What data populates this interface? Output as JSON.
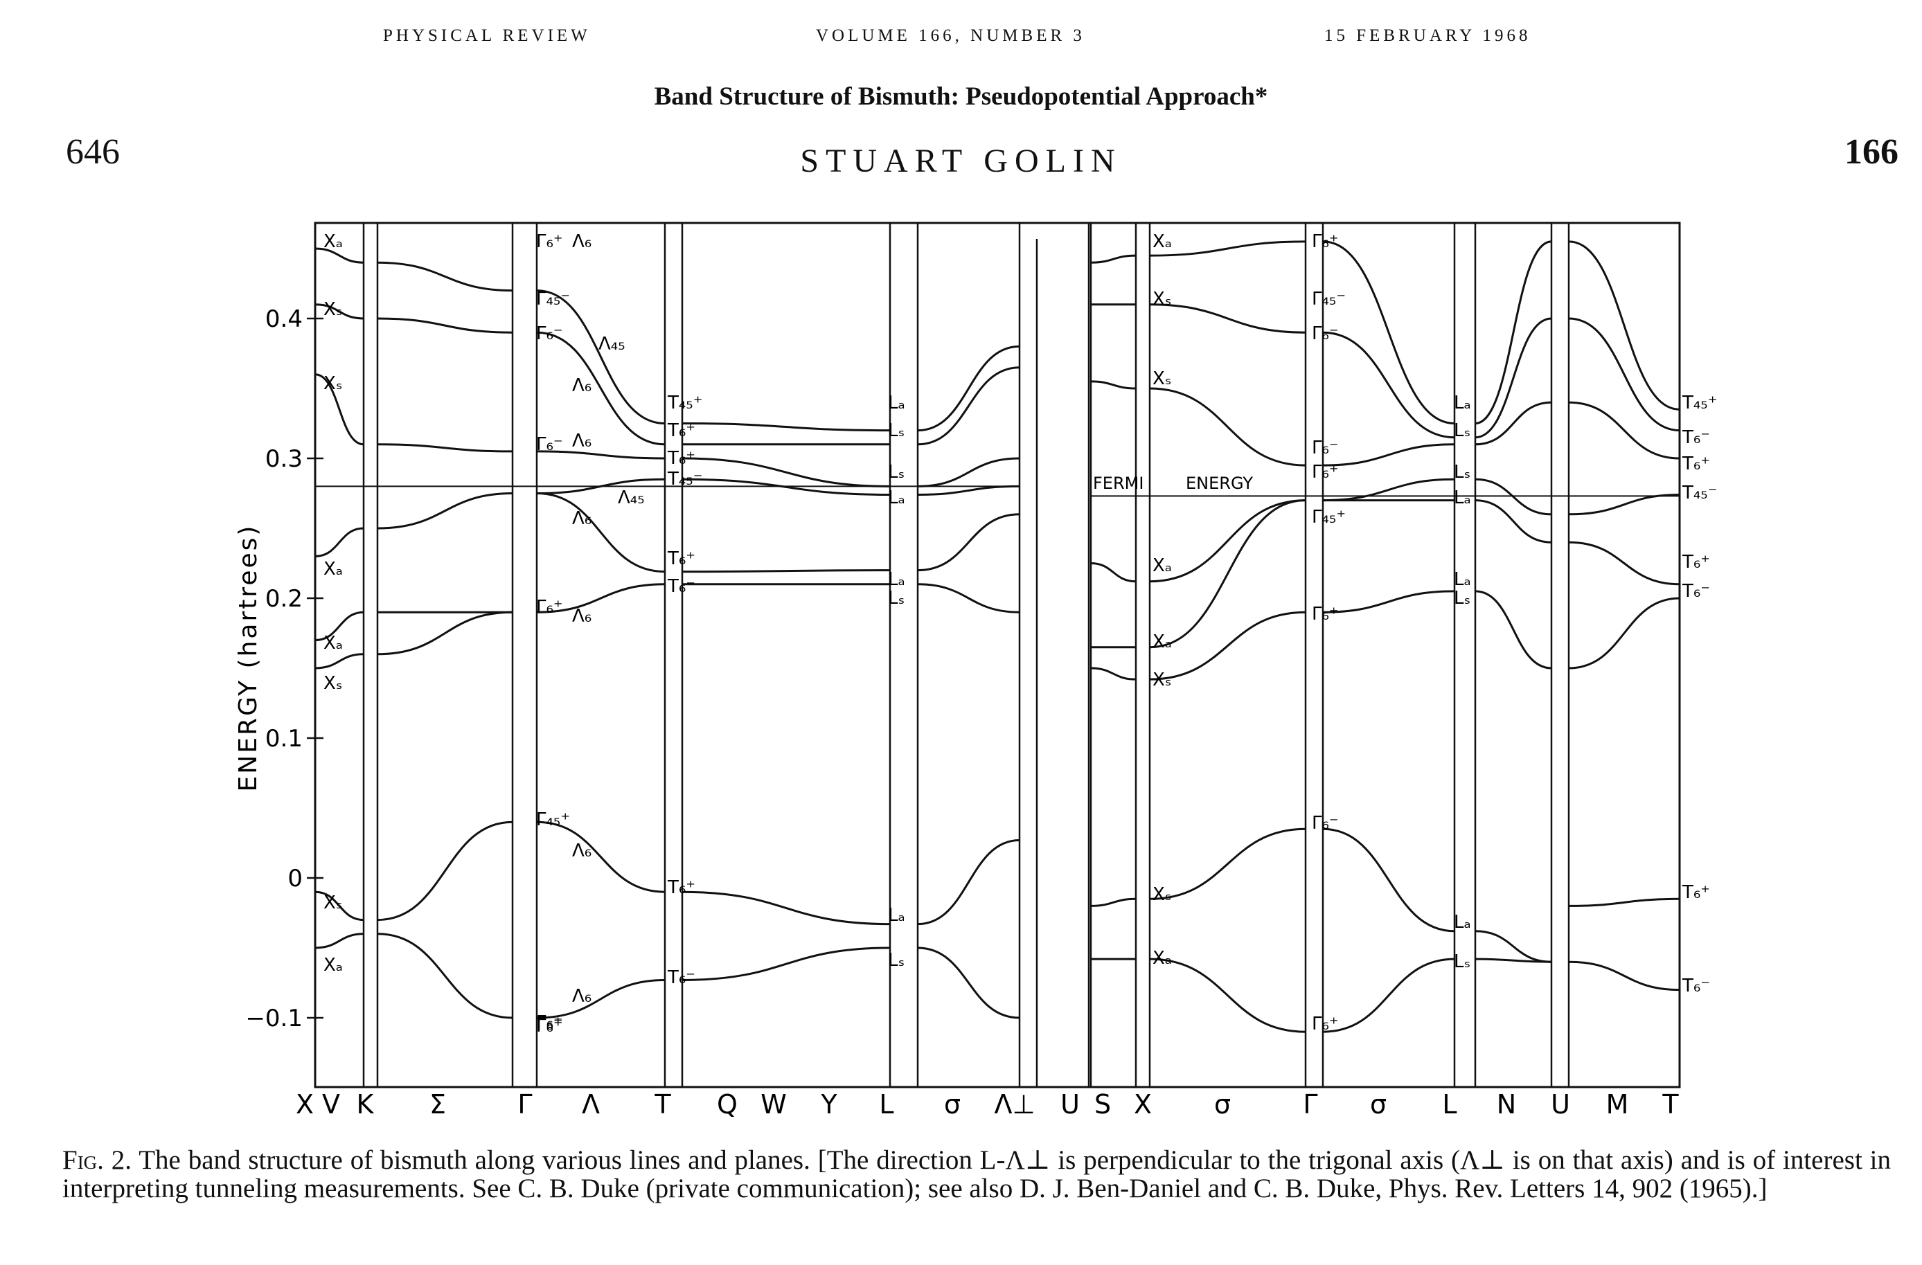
{
  "header": {
    "journal": "PHYSICAL REVIEW",
    "volume": "VOLUME 166, NUMBER 3",
    "date": "15 FEBRUARY 1968"
  },
  "page": {
    "number": "646",
    "volume_num": "166"
  },
  "article": {
    "title": "Band Structure of Bismuth: Pseudopotential Approach*",
    "author": "STUART GOLIN"
  },
  "figure": {
    "y_axis_label": "ENERGY (hartrees)",
    "y_ticks": [
      "0.4",
      "0.3",
      "0.2",
      "0.1",
      "0",
      "−0.1"
    ],
    "x_labels": [
      "X",
      "V",
      "K",
      "Σ",
      "Γ",
      "Λ",
      "T",
      "Q",
      "W",
      "Y",
      "L",
      "σ",
      "Λ⊥",
      "U",
      "S",
      "X",
      "σ",
      "Γ",
      "σ",
      "L",
      "N",
      "U",
      "M",
      "T"
    ],
    "fermi_label": "FERMI",
    "fermi_label2": "ENERGY",
    "fermi_energy": 0.28,
    "point_labels": [
      "Xₐ",
      "Xₛ",
      "Xₛ",
      "Xₐ",
      "Xₐ",
      "Xₛ",
      "Xₛ",
      "Xₐ",
      "Γ₆⁺",
      "Γ₄₅⁻",
      "Γ₆⁻",
      "Γ₆⁻",
      "Γ₆⁺",
      "Γ₄₅⁺",
      "Γ₆⁺",
      "Γ₆⁻",
      "Γ₆⁺",
      "Λ₆",
      "Λ₄₅",
      "Λ₆",
      "Λ₆",
      "Λ₄₅",
      "Λ₆",
      "Λ₆",
      "Λ₆",
      "Λ₆",
      "T₄₅⁺",
      "T₆⁺",
      "T₆⁺",
      "T₄₅⁻",
      "T₆⁺",
      "T₆⁻",
      "T₆⁺",
      "T₆⁻",
      "Lₐ",
      "Lₛ",
      "Lₛ",
      "Lₐ",
      "Lₐ",
      "Lₛ",
      "Lₐ",
      "Lₛ",
      "Xₐ",
      "Xₛ",
      "Xₛ",
      "Xₐ",
      "Xₐ",
      "Xₛ",
      "Xₛ",
      "Xₐ",
      "Γ₆⁺",
      "Γ₄₅⁻",
      "Γ₆⁻",
      "Γ₆⁻",
      "Γ₆⁺",
      "Γ₄₅⁺",
      "Γ₆⁺",
      "Γ₆⁻",
      "Γ₆⁺",
      "Lₐ",
      "Lₛ",
      "Lₛ",
      "Lₐ",
      "Lₐ",
      "Lₛ",
      "Lₐ",
      "Lₛ",
      "T₄₅⁺",
      "T₆⁻",
      "T₆⁺",
      "T₄₅⁻",
      "T₆⁺",
      "T₆⁻",
      "T₆⁺",
      "T₆⁻"
    ]
  },
  "caption": {
    "fig_label": "Fig. 2.",
    "text": " The band structure of bismuth along various lines and planes. [The direction L-Λ⊥ is perpendicular to the trigonal axis (Λ⊥ is on that axis) and is of interest in interpreting tunneling measurements. See C. B. Duke (private communication); see also D. J. Ben-Daniel and C. B. Duke, Phys. Rev. Letters 14, 902 (1965).]"
  },
  "chart_data": {
    "type": "line",
    "ylabel": "ENERGY (hartrees)",
    "ylim": [
      -0.14,
      0.46
    ],
    "y_ticks": [
      0.4,
      0.3,
      0.2,
      0.1,
      0,
      -0.1
    ],
    "fermi_energy": 0.28,
    "panels": [
      {
        "from": "X",
        "to": "K",
        "bands": [
          [
            -0.01,
            -0.03
          ],
          [
            -0.05,
            -0.04
          ],
          [
            0.15,
            0.16
          ],
          [
            0.17,
            0.19
          ],
          [
            0.23,
            0.25
          ],
          [
            0.36,
            0.31
          ],
          [
            0.41,
            0.4
          ],
          [
            0.45,
            0.44
          ]
        ]
      },
      {
        "from": "K",
        "to": "Γ",
        "bands": [
          [
            -0.03,
            0.04
          ],
          [
            -0.04,
            -0.1
          ],
          [
            0.16,
            0.19
          ],
          [
            0.19,
            0.19
          ],
          [
            0.25,
            0.275
          ],
          [
            0.31,
            0.305
          ],
          [
            0.4,
            0.39
          ],
          [
            0.44,
            0.42
          ]
        ]
      },
      {
        "from": "Γ",
        "to": "T",
        "bands": [
          [
            0.04,
            -0.01
          ],
          [
            -0.1,
            -0.073
          ],
          [
            0.19,
            0.21
          ],
          [
            0.275,
            0.219
          ],
          [
            0.275,
            0.285
          ],
          [
            0.305,
            0.3
          ],
          [
            0.39,
            0.31
          ],
          [
            0.42,
            0.325
          ]
        ]
      },
      {
        "from": "T",
        "to": "L",
        "bands": [
          [
            -0.01,
            -0.033
          ],
          [
            -0.073,
            -0.05
          ],
          [
            0.21,
            0.21
          ],
          [
            0.219,
            0.22
          ],
          [
            0.285,
            0.274
          ],
          [
            0.3,
            0.28
          ],
          [
            0.31,
            0.31
          ],
          [
            0.325,
            0.32
          ]
        ]
      },
      {
        "from": "L",
        "to": "Λ⊥",
        "bands": [
          [
            -0.033,
            0.027
          ],
          [
            -0.05,
            -0.1
          ],
          [
            0.21,
            0.19
          ],
          [
            0.22,
            0.26
          ],
          [
            0.274,
            0.28
          ],
          [
            0.28,
            0.3
          ],
          [
            0.31,
            0.365
          ],
          [
            0.32,
            0.38
          ]
        ]
      },
      {
        "from": "S",
        "to": "X",
        "bands": [
          [
            -0.02,
            -0.015
          ],
          [
            -0.058,
            -0.058
          ],
          [
            0.15,
            0.142
          ],
          [
            0.165,
            0.165
          ],
          [
            0.225,
            0.212
          ],
          [
            0.355,
            0.35
          ],
          [
            0.41,
            0.41
          ],
          [
            0.44,
            0.445
          ]
        ]
      },
      {
        "from": "X",
        "to": "Γ",
        "bands": [
          [
            -0.015,
            0.035
          ],
          [
            -0.058,
            -0.11
          ],
          [
            0.142,
            0.19
          ],
          [
            0.165,
            0.27
          ],
          [
            0.212,
            0.27
          ],
          [
            0.35,
            0.295
          ],
          [
            0.41,
            0.39
          ],
          [
            0.445,
            0.455
          ]
        ]
      },
      {
        "from": "Γ",
        "to": "L",
        "bands": [
          [
            0.035,
            -0.038
          ],
          [
            -0.11,
            -0.058
          ],
          [
            0.19,
            0.205
          ],
          [
            0.27,
            0.27
          ],
          [
            0.27,
            0.285
          ],
          [
            0.295,
            0.31
          ],
          [
            0.39,
            0.315
          ],
          [
            0.455,
            0.325
          ]
        ]
      },
      {
        "from": "L",
        "to": "U",
        "bands": [
          [
            -0.038,
            -0.06
          ],
          [
            -0.058,
            -0.06
          ],
          [
            0.205,
            0.15
          ],
          [
            0.27,
            0.24
          ],
          [
            0.285,
            0.26
          ],
          [
            0.31,
            0.34
          ],
          [
            0.315,
            0.4
          ],
          [
            0.325,
            0.455
          ]
        ]
      },
      {
        "from": "U",
        "to": "T",
        "bands": [
          [
            -0.02,
            -0.015
          ],
          [
            -0.06,
            -0.08
          ],
          [
            0.15,
            0.2
          ],
          [
            0.24,
            0.21
          ],
          [
            0.26,
            0.274
          ],
          [
            0.34,
            0.3
          ],
          [
            0.4,
            0.32
          ],
          [
            0.455,
            0.335
          ]
        ]
      }
    ]
  }
}
